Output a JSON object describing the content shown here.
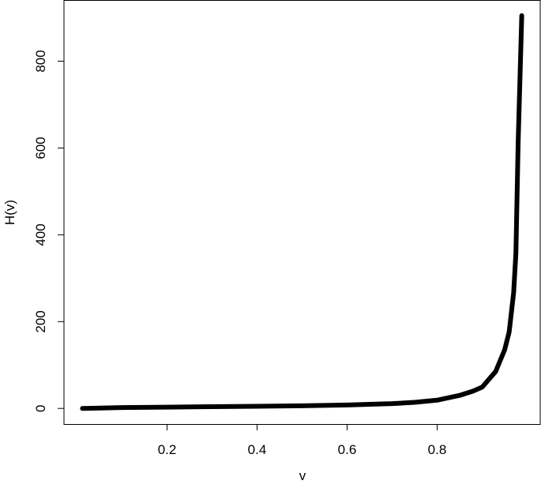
{
  "chart_data": {
    "type": "line",
    "xlabel": "v",
    "ylabel": "H(v)",
    "x": [
      0.012,
      0.1,
      0.2,
      0.3,
      0.4,
      0.5,
      0.6,
      0.7,
      0.75,
      0.8,
      0.85,
      0.88,
      0.9,
      0.93,
      0.95,
      0.96,
      0.97,
      0.975,
      0.98,
      0.988
    ],
    "series": [
      {
        "color": "#000000",
        "values": [
          0,
          2,
          3,
          4,
          5,
          6,
          8,
          11,
          14,
          19,
          30,
          40,
          49,
          85,
          135,
          176,
          267,
          358,
          613,
          905
        ]
      }
    ],
    "xlim": [
      -0.029,
      1.029
    ],
    "ylim": [
      -36,
      941
    ],
    "xticks": [
      0.2,
      0.4,
      0.6,
      0.8
    ],
    "yticks": [
      0,
      200,
      400,
      600,
      800
    ]
  }
}
